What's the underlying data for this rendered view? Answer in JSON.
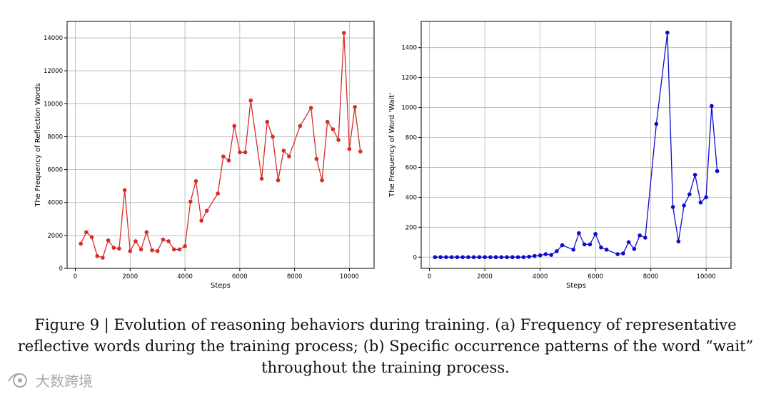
{
  "chart_data": [
    {
      "type": "line",
      "xlabel": "Steps",
      "ylabel": "The Frequency of Reflection Words",
      "xlim": [
        -300,
        10900
      ],
      "ylim": [
        0,
        15000
      ],
      "xticks": [
        0,
        2000,
        4000,
        6000,
        8000,
        10000
      ],
      "yticks": [
        0,
        2000,
        4000,
        6000,
        8000,
        10000,
        12000,
        14000
      ],
      "grid": true,
      "color": "#d62d28",
      "x": [
        200,
        400,
        600,
        800,
        1000,
        1200,
        1400,
        1600,
        1800,
        2000,
        2200,
        2400,
        2600,
        2800,
        3000,
        3200,
        3400,
        3600,
        3800,
        4000,
        4200,
        4400,
        4600,
        4800,
        5200,
        5400,
        5600,
        5800,
        6000,
        6200,
        6400,
        6800,
        7000,
        7200,
        7400,
        7600,
        7800,
        8200,
        8600,
        8800,
        9000,
        9200,
        9400,
        9600,
        9800,
        10000,
        10200,
        10400
      ],
      "y": [
        1500,
        2200,
        1900,
        750,
        650,
        1700,
        1250,
        1200,
        4750,
        1050,
        1650,
        1150,
        2200,
        1100,
        1050,
        1750,
        1650,
        1150,
        1150,
        1350,
        4050,
        5300,
        2900,
        3500,
        4550,
        6800,
        6550,
        8650,
        7050,
        7050,
        10200,
        5450,
        8900,
        8000,
        5350,
        7150,
        6800,
        8650,
        9750,
        6650,
        5350,
        8900,
        8450,
        7800,
        14300,
        7250,
        9800,
        7100
      ]
    },
    {
      "type": "line",
      "xlabel": "Steps",
      "ylabel": "The Frequency of Word 'Wait'",
      "xlim": [
        -300,
        10900
      ],
      "ylim": [
        -75,
        1575
      ],
      "xticks": [
        0,
        2000,
        4000,
        6000,
        8000,
        10000
      ],
      "yticks": [
        0,
        200,
        400,
        600,
        800,
        1000,
        1200,
        1400
      ],
      "grid": true,
      "color": "#0c0ccc",
      "x": [
        200,
        400,
        600,
        800,
        1000,
        1200,
        1400,
        1600,
        1800,
        2000,
        2200,
        2400,
        2600,
        2800,
        3000,
        3200,
        3400,
        3600,
        3800,
        4000,
        4200,
        4400,
        4600,
        4800,
        5200,
        5400,
        5600,
        5800,
        6000,
        6200,
        6400,
        6800,
        7000,
        7200,
        7400,
        7600,
        7800,
        8200,
        8600,
        8800,
        9000,
        9200,
        9400,
        9600,
        9800,
        10000,
        10200,
        10400
      ],
      "y": [
        0,
        0,
        0,
        0,
        0,
        0,
        0,
        0,
        0,
        0,
        0,
        0,
        0,
        0,
        0,
        0,
        0,
        3,
        8,
        12,
        20,
        15,
        40,
        80,
        50,
        160,
        85,
        85,
        155,
        65,
        50,
        20,
        25,
        100,
        55,
        145,
        130,
        890,
        1500,
        335,
        105,
        345,
        420,
        550,
        365,
        400,
        1010,
        575
      ]
    }
  ],
  "caption": {
    "line1": "Figure 9 | Evolution of reasoning behaviors during training. (a) Frequency of representative",
    "line2": "reflective words during the training process; (b) Specific occurrence patterns of the word “wait”",
    "line3": "throughout the training process."
  },
  "watermark": {
    "text": "大数跨境",
    "icon": "eye-logo-icon"
  }
}
